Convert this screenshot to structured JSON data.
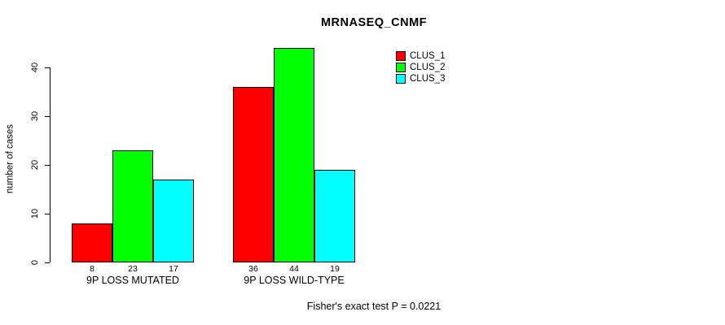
{
  "chart_data": {
    "type": "bar",
    "title": "MRNASEQ_CNMF",
    "ylabel": "number of cases",
    "xlabel": "",
    "footnote": "Fisher's exact test P = 0.0221",
    "ylim": [
      0,
      45
    ],
    "yticks": [
      0,
      10,
      20,
      30,
      40
    ],
    "grid": false,
    "legend_position": "inside-top-right",
    "bar_value_labels_shown": true,
    "categories": [
      "9P LOSS MUTATED",
      "9P LOSS WILD-TYPE"
    ],
    "series": [
      {
        "name": "CLUS_1",
        "color": "#ff0000",
        "values": [
          8,
          36
        ]
      },
      {
        "name": "CLUS_2",
        "color": "#00ff00",
        "values": [
          23,
          44
        ]
      },
      {
        "name": "CLUS_3",
        "color": "#00ffff",
        "values": [
          17,
          19
        ]
      }
    ]
  },
  "style": {
    "background": "#ffffff",
    "text_color": "#000000",
    "axis_color": "#000000",
    "bar_border_color": "#000000"
  }
}
